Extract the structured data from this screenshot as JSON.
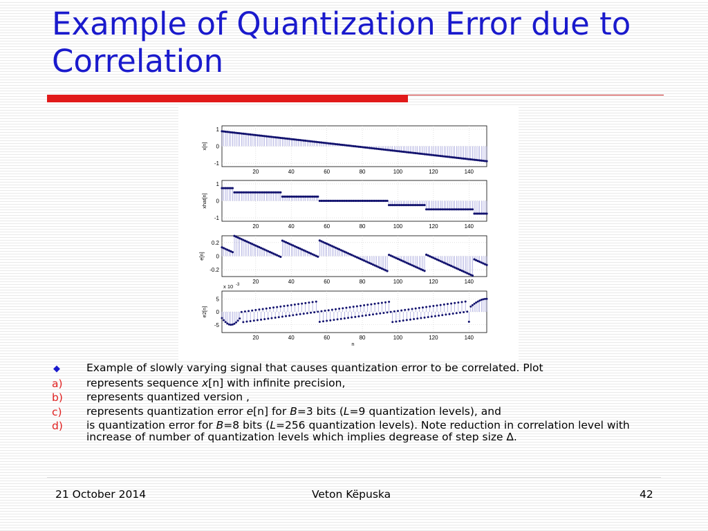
{
  "slide": {
    "title": "Example of Quantization Error due to Correlation"
  },
  "bullets": {
    "intro": "Example of slowly varying signal that causes quantization error to be correlated. Plot",
    "items": [
      {
        "marker": "a)",
        "parts": [
          "represents sequence ",
          "x",
          "[n] with infinite precision,"
        ]
      },
      {
        "marker": "b)",
        "parts": [
          "represents quantized version ,"
        ]
      },
      {
        "marker": "c)",
        "parts": [
          "represents quantization error ",
          "e",
          "[n] for ",
          "B",
          "=3 bits (",
          "L",
          "=9 quantization levels), and"
        ]
      },
      {
        "marker": "d)",
        "parts": [
          "is quantization error for ",
          "B",
          "=8 bits (",
          "L",
          "=256 quantization levels). Note reduction in correlation level with increase of number of quantization levels which implies degrease of step size ",
          "∆",
          "."
        ]
      }
    ]
  },
  "footer": {
    "date": "21 October 2014",
    "author": "Veton Këpuska",
    "page": "42"
  },
  "chart_data": [
    {
      "type": "stem",
      "ylabel": "x[n]",
      "x_range": [
        1,
        150
      ],
      "ylim": [
        -1.2,
        1.2
      ],
      "yticks": [
        "1",
        "0",
        "-1"
      ],
      "xticks": [
        "20",
        "40",
        "60",
        "80",
        "100",
        "120",
        "140"
      ],
      "description_of_values": "x[n] ≈ 0.9·cos(0.006·n)-shaped ramp from 0.88 at n=1 to -0.88 at n=150"
    },
    {
      "type": "stem",
      "ylabel": "xhat[n]",
      "x_range": [
        1,
        150
      ],
      "ylim": [
        -1.2,
        1.2
      ],
      "yticks": [
        "1",
        "0",
        "-1"
      ],
      "xticks": [
        "20",
        "40",
        "60",
        "80",
        "100",
        "120",
        "140"
      ],
      "steps": [
        {
          "from": 1,
          "to": 8,
          "value": 0.75
        },
        {
          "from": 8,
          "to": 35,
          "value": 0.5
        },
        {
          "from": 35,
          "to": 56,
          "value": 0.25
        },
        {
          "from": 56,
          "to": 95,
          "value": 0.0
        },
        {
          "from": 95,
          "to": 116,
          "value": -0.25
        },
        {
          "from": 116,
          "to": 143,
          "value": -0.5
        },
        {
          "from": 143,
          "to": 150,
          "value": -0.75
        }
      ]
    },
    {
      "type": "stem",
      "ylabel": "e[n]",
      "x_range": [
        1,
        150
      ],
      "ylim": [
        -0.3,
        0.3
      ],
      "yticks": [
        "0.2",
        "0",
        "-0.2"
      ],
      "xticks": [
        "20",
        "40",
        "60",
        "80",
        "100",
        "120",
        "140"
      ],
      "sawtooth_breaks": [
        8,
        35,
        56,
        95,
        116,
        143
      ],
      "range_per_segment": [
        -0.125,
        0.125
      ]
    },
    {
      "type": "stem",
      "ylabel": "e2[n]",
      "xlabel": "n",
      "exponent_label": "x 10",
      "exponent_power": "-3",
      "x_range": [
        1,
        150
      ],
      "ylim": [
        -8,
        8
      ],
      "yticks": [
        "5",
        "0",
        "-5"
      ],
      "xticks": [
        "20",
        "40",
        "60",
        "80",
        "100",
        "120",
        "140"
      ],
      "amplitude": 4.5
    }
  ]
}
